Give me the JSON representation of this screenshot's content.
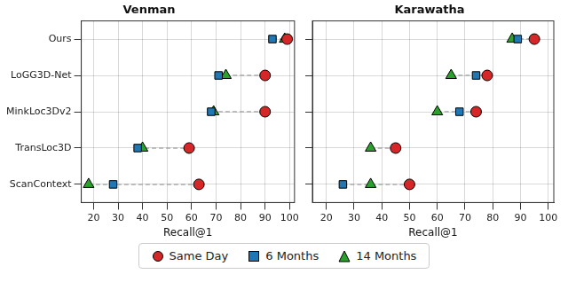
{
  "chart_data": [
    {
      "type": "scatter",
      "title": "Venman",
      "xlabel": "Recall@1",
      "categories": [
        "Ours",
        "LoGG3D-Net",
        "MinkLoc3Dv2",
        "TransLoc3D",
        "ScanContext"
      ],
      "series": [
        {
          "name": "Same Day",
          "color": "#d62728",
          "marker": "circle",
          "values": [
            99,
            90,
            90,
            59,
            63
          ]
        },
        {
          "name": "6 Months",
          "color": "#1f77b4",
          "marker": "square",
          "values": [
            93,
            71,
            68,
            38,
            28
          ]
        },
        {
          "name": "14 Months",
          "color": "#2ca02c",
          "marker": "triangle",
          "values": [
            98,
            74,
            69,
            40,
            18
          ]
        }
      ],
      "xlim": [
        15,
        102
      ],
      "xticks": [
        20,
        30,
        40,
        50,
        60,
        70,
        80,
        90,
        100
      ],
      "orientation": "horizontal",
      "grid": true,
      "legend": "bottom"
    },
    {
      "type": "scatter",
      "title": "Karawatha",
      "xlabel": "Recall@1",
      "categories": [
        "Ours",
        "LoGG3D-Net",
        "MinkLoc3Dv2",
        "TransLoc3D",
        "ScanContext"
      ],
      "series": [
        {
          "name": "Same Day",
          "color": "#d62728",
          "marker": "circle",
          "values": [
            95,
            78,
            74,
            45,
            50
          ]
        },
        {
          "name": "6 Months",
          "color": "#1f77b4",
          "marker": "square",
          "values": [
            89,
            74,
            68,
            45,
            26
          ]
        },
        {
          "name": "14 Months",
          "color": "#2ca02c",
          "marker": "triangle",
          "values": [
            87,
            65,
            60,
            36,
            36
          ]
        }
      ],
      "xlim": [
        15,
        102
      ],
      "xticks": [
        20,
        30,
        40,
        50,
        60,
        70,
        80,
        90,
        100
      ],
      "orientation": "horizontal",
      "grid": true,
      "legend": "bottom"
    }
  ]
}
